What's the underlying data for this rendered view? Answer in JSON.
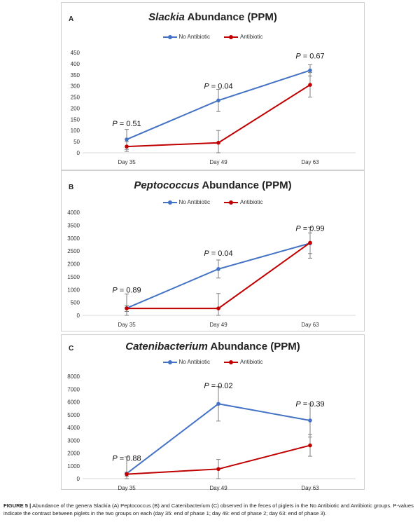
{
  "legend": {
    "no_antibiotic": "No Antibiotic",
    "antibiotic": "Antibiotic"
  },
  "colors": {
    "no_antibiotic": "#4472c4",
    "antibiotic": "#c00000",
    "error_bar": "#7f7f7f"
  },
  "chart_data": [
    {
      "type": "line",
      "panel": "A",
      "title_genus": "Slackia",
      "title_rest": " Abundance (PPM)",
      "categories": [
        "Day 35",
        "Day 49",
        "Day 63"
      ],
      "ylim": [
        0,
        450
      ],
      "yticks": [
        0,
        50,
        100,
        150,
        200,
        250,
        300,
        350,
        400,
        450
      ],
      "grid": false,
      "legend_position": "top",
      "series": [
        {
          "name": "No Antibiotic",
          "values": [
            60,
            235,
            370
          ],
          "err": [
            45,
            50,
            25
          ]
        },
        {
          "name": "Antibiotic",
          "values": [
            28,
            45,
            305
          ],
          "err": [
            22,
            55,
            55
          ]
        }
      ],
      "annotations": [
        "P = 0.51",
        "P = 0.04",
        "P = 0.67"
      ]
    },
    {
      "type": "line",
      "panel": "B",
      "title_genus": "Peptococcus",
      "title_rest": " Abundance (PPM)",
      "categories": [
        "Day 35",
        "Day 49",
        "Day 63"
      ],
      "ylim": [
        0,
        4000
      ],
      "yticks": [
        0,
        500,
        1000,
        1500,
        2000,
        2500,
        3000,
        3500,
        4000
      ],
      "grid": false,
      "legend_position": "top",
      "series": [
        {
          "name": "No Antibiotic",
          "values": [
            280,
            1800,
            2800
          ],
          "err": [
            550,
            350,
            400
          ]
        },
        {
          "name": "Antibiotic",
          "values": [
            270,
            270,
            2820
          ],
          "err": [
            120,
            580,
            600
          ]
        }
      ],
      "annotations": [
        "P = 0.89",
        "P = 0.04",
        "P = 0.99"
      ]
    },
    {
      "type": "line",
      "panel": "C",
      "title_genus": "Catenibacterium",
      "title_rest": " Abundance (PPM)",
      "categories": [
        "Day 35",
        "Day 49",
        "Day 63"
      ],
      "ylim": [
        0,
        8000
      ],
      "yticks": [
        0,
        1000,
        2000,
        3000,
        4000,
        5000,
        6000,
        7000,
        8000
      ],
      "grid": false,
      "legend_position": "top",
      "series": [
        {
          "name": "No Antibiotic",
          "values": [
            400,
            5850,
            4550
          ],
          "err": [
            1300,
            1350,
            1300
          ]
        },
        {
          "name": "Antibiotic",
          "values": [
            350,
            750,
            2600
          ],
          "err": [
            150,
            750,
            850
          ]
        }
      ],
      "annotations": [
        "P = 0.88",
        "P = 0.02",
        "P = 0.39"
      ]
    }
  ],
  "caption": {
    "figure_label": "FIGURE 5 |",
    "text": " Abundance of the genera Slackia (A) Peptococcus (B) and Catenibacterium (C) observed in the feces of piglets in the No Antibiotic and Antibiotic groups. P-values indicate the contrast between piglets in the two groups on each (day 35: end of phase 1; day 49: end of phase 2; day 63: end of phase 3)."
  }
}
